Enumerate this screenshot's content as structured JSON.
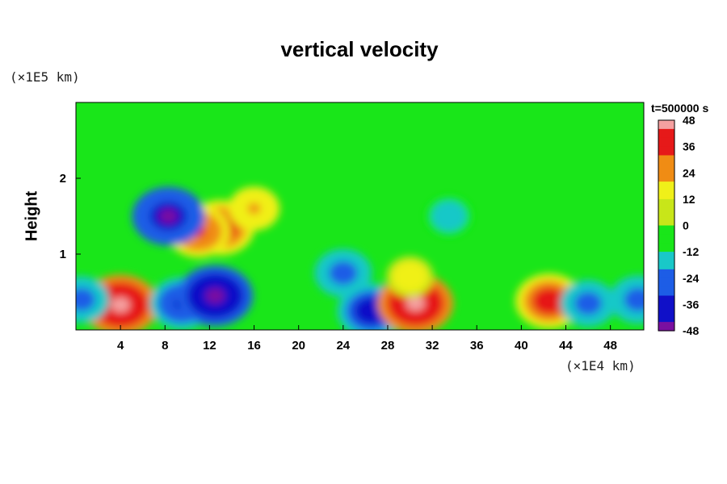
{
  "title": "vertical velocity",
  "y_unit_label": "(×1E5 km)",
  "x_unit_label": "(×1E4 km)",
  "ylabel": "Height",
  "time_label": "t=500000 s",
  "colors": {
    "background_field": "#19e619",
    "frame": "#000000",
    "colormap": [
      "#7a0fa0",
      "#1010c8",
      "#1d5de6",
      "#19c8c8",
      "#19e619",
      "#c8e619",
      "#f0f019",
      "#f08c14",
      "#e61919",
      "#f5a0a0"
    ]
  },
  "chart_data": {
    "type": "heatmap",
    "title": "vertical velocity",
    "xlabel": "(×1E4 km)",
    "ylabel": "Height",
    "x_ticks": [
      4,
      8,
      12,
      16,
      20,
      24,
      28,
      32,
      36,
      40,
      44,
      48
    ],
    "y_ticks": [
      1,
      2
    ],
    "xlim": [
      0,
      51
    ],
    "ylim": [
      0,
      3
    ],
    "colorbar": {
      "ticks": [
        48,
        36,
        24,
        12,
        0,
        -12,
        -24,
        -36,
        -48
      ],
      "range": [
        -48,
        48
      ]
    },
    "features": [
      {
        "x": 4,
        "y": 0.33,
        "value": 48,
        "sign": "updraft"
      },
      {
        "x": 9.5,
        "y": 0.35,
        "value": -36,
        "sign": "downdraft"
      },
      {
        "x": 12.5,
        "y": 0.45,
        "value": -48,
        "sign": "downdraft"
      },
      {
        "x": 13,
        "y": 1.35,
        "value": 40,
        "sign": "updraft"
      },
      {
        "x": 11,
        "y": 1.3,
        "value": 36,
        "sign": "updraft"
      },
      {
        "x": 8.3,
        "y": 1.5,
        "value": -45,
        "sign": "downdraft"
      },
      {
        "x": 16,
        "y": 1.6,
        "value": 24,
        "sign": "updraft"
      },
      {
        "x": 24,
        "y": 0.75,
        "value": -30,
        "sign": "downdraft"
      },
      {
        "x": 26.5,
        "y": 0.25,
        "value": -40,
        "sign": "downdraft"
      },
      {
        "x": 30.5,
        "y": 0.35,
        "value": 48,
        "sign": "updraft"
      },
      {
        "x": 30,
        "y": 0.7,
        "value": 20,
        "sign": "updraft"
      },
      {
        "x": 42.5,
        "y": 0.38,
        "value": 40,
        "sign": "updraft"
      },
      {
        "x": 46,
        "y": 0.35,
        "value": -28,
        "sign": "downdraft"
      },
      {
        "x": 50.5,
        "y": 0.4,
        "value": -30,
        "sign": "downdraft"
      },
      {
        "x": 0.5,
        "y": 0.4,
        "value": -28,
        "sign": "downdraft"
      },
      {
        "x": 33.5,
        "y": 1.5,
        "value": -20,
        "sign": "downdraft"
      }
    ]
  }
}
